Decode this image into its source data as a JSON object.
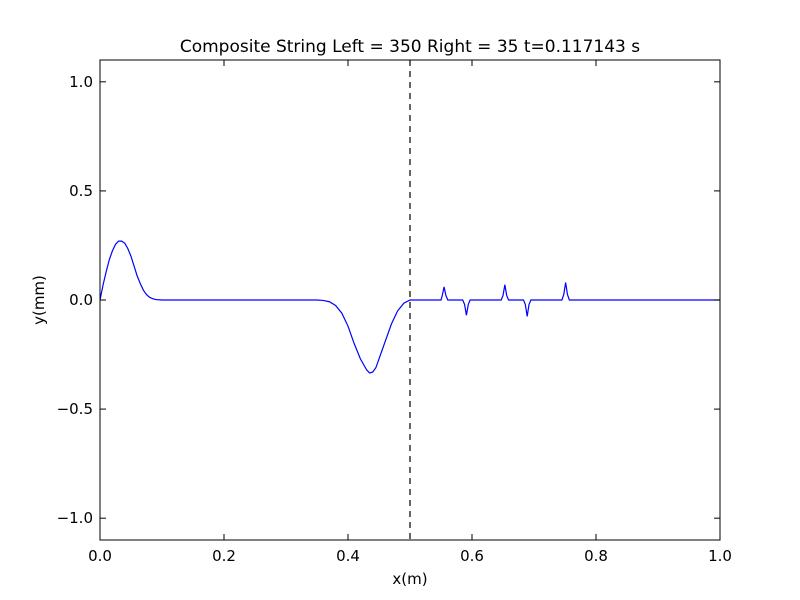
{
  "chart_data": {
    "type": "line",
    "title": "Composite String Left = 350 Right = 35  t=0.117143 s",
    "xlabel": "x(m)",
    "ylabel": "y(mm)",
    "xlim": [
      0.0,
      1.0
    ],
    "ylim": [
      -1.1,
      1.1
    ],
    "grid": false,
    "x_ticks": [
      0.0,
      0.2,
      0.4,
      0.6,
      0.8,
      1.0
    ],
    "x_tick_labels": [
      "0.0",
      "0.2",
      "0.4",
      "0.6",
      "0.8",
      "1.0"
    ],
    "y_ticks": [
      1.0,
      0.5,
      0.0,
      -0.5,
      -1.0
    ],
    "y_tick_labels": [
      "1.0",
      "0.5",
      "0.0",
      "−0.5",
      "−1.0"
    ],
    "interface_line": {
      "x": 0.5,
      "style": "dashed",
      "color": "#000000"
    },
    "series": [
      {
        "color": "#0000ff",
        "points": [
          [
            0.0,
            0.0
          ],
          [
            0.005,
            0.07
          ],
          [
            0.01,
            0.13
          ],
          [
            0.015,
            0.185
          ],
          [
            0.02,
            0.225
          ],
          [
            0.025,
            0.255
          ],
          [
            0.03,
            0.27
          ],
          [
            0.035,
            0.27
          ],
          [
            0.04,
            0.26
          ],
          [
            0.045,
            0.235
          ],
          [
            0.05,
            0.2
          ],
          [
            0.055,
            0.155
          ],
          [
            0.06,
            0.11
          ],
          [
            0.065,
            0.075
          ],
          [
            0.07,
            0.045
          ],
          [
            0.075,
            0.025
          ],
          [
            0.08,
            0.012
          ],
          [
            0.085,
            0.006
          ],
          [
            0.09,
            0.002
          ],
          [
            0.1,
            0.0
          ],
          [
            0.2,
            0.0
          ],
          [
            0.3,
            0.0
          ],
          [
            0.35,
            0.0
          ],
          [
            0.36,
            -0.002
          ],
          [
            0.37,
            -0.008
          ],
          [
            0.38,
            -0.025
          ],
          [
            0.39,
            -0.06
          ],
          [
            0.4,
            -0.12
          ],
          [
            0.41,
            -0.2
          ],
          [
            0.42,
            -0.27
          ],
          [
            0.43,
            -0.32
          ],
          [
            0.435,
            -0.335
          ],
          [
            0.44,
            -0.33
          ],
          [
            0.445,
            -0.31
          ],
          [
            0.45,
            -0.27
          ],
          [
            0.46,
            -0.19
          ],
          [
            0.47,
            -0.11
          ],
          [
            0.48,
            -0.05
          ],
          [
            0.49,
            -0.015
          ],
          [
            0.5,
            0.0
          ],
          [
            0.55,
            0.0
          ],
          [
            0.552,
            0.02
          ],
          [
            0.555,
            0.06
          ],
          [
            0.558,
            0.02
          ],
          [
            0.561,
            0.0
          ],
          [
            0.585,
            0.0
          ],
          [
            0.588,
            -0.02
          ],
          [
            0.591,
            -0.07
          ],
          [
            0.594,
            -0.02
          ],
          [
            0.597,
            0.0
          ],
          [
            0.647,
            0.0
          ],
          [
            0.65,
            0.02
          ],
          [
            0.653,
            0.07
          ],
          [
            0.656,
            0.02
          ],
          [
            0.659,
            0.0
          ],
          [
            0.683,
            0.0
          ],
          [
            0.686,
            -0.02
          ],
          [
            0.689,
            -0.075
          ],
          [
            0.692,
            -0.02
          ],
          [
            0.695,
            0.0
          ],
          [
            0.745,
            0.0
          ],
          [
            0.748,
            0.025
          ],
          [
            0.751,
            0.08
          ],
          [
            0.754,
            0.025
          ],
          [
            0.757,
            0.0
          ],
          [
            0.8,
            0.0
          ],
          [
            0.9,
            0.0
          ],
          [
            1.0,
            0.0
          ]
        ]
      }
    ]
  }
}
